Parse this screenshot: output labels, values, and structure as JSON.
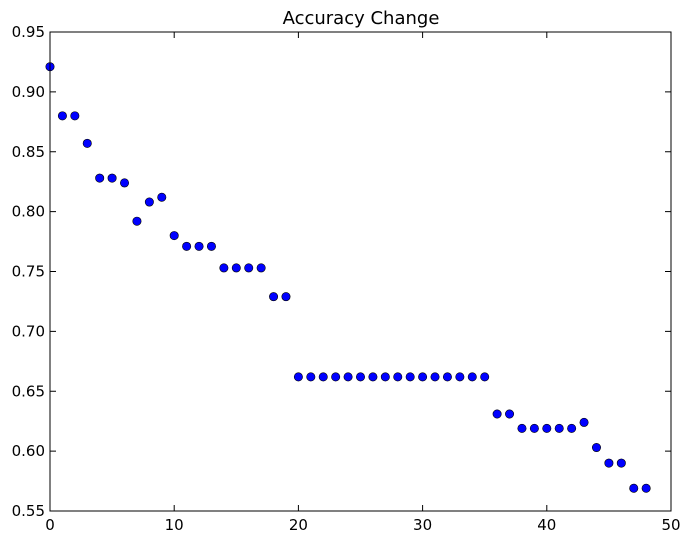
{
  "chart_data": {
    "type": "scatter",
    "title": "Accuracy Change",
    "xlabel": "",
    "ylabel": "",
    "xlim": [
      0,
      50
    ],
    "ylim": [
      0.55,
      0.95
    ],
    "xticks": [
      0,
      10,
      20,
      30,
      40,
      50
    ],
    "xtick_labels": [
      "0",
      "10",
      "20",
      "30",
      "40",
      "50"
    ],
    "yticks": [
      0.55,
      0.6,
      0.65,
      0.7,
      0.75,
      0.8,
      0.85,
      0.9,
      0.95
    ],
    "ytick_labels": [
      "0.55",
      "0.60",
      "0.65",
      "0.70",
      "0.75",
      "0.80",
      "0.85",
      "0.90",
      "0.95"
    ],
    "grid": false,
    "marker_color": "#0000ff",
    "x": [
      0,
      1,
      2,
      3,
      4,
      5,
      6,
      7,
      8,
      9,
      10,
      11,
      12,
      13,
      14,
      15,
      16,
      17,
      18,
      19,
      20,
      21,
      22,
      23,
      24,
      25,
      26,
      27,
      28,
      29,
      30,
      31,
      32,
      33,
      34,
      35,
      36,
      37,
      38,
      39,
      40,
      41,
      42,
      43,
      44,
      45,
      46,
      47,
      48
    ],
    "y": [
      0.921,
      0.88,
      0.88,
      0.857,
      0.828,
      0.828,
      0.824,
      0.792,
      0.808,
      0.812,
      0.78,
      0.771,
      0.771,
      0.771,
      0.753,
      0.753,
      0.753,
      0.753,
      0.729,
      0.729,
      0.662,
      0.662,
      0.662,
      0.662,
      0.662,
      0.662,
      0.662,
      0.662,
      0.662,
      0.662,
      0.662,
      0.662,
      0.662,
      0.662,
      0.662,
      0.662,
      0.631,
      0.631,
      0.619,
      0.619,
      0.619,
      0.619,
      0.619,
      0.624,
      0.603,
      0.59,
      0.59,
      0.569,
      0.569
    ]
  }
}
